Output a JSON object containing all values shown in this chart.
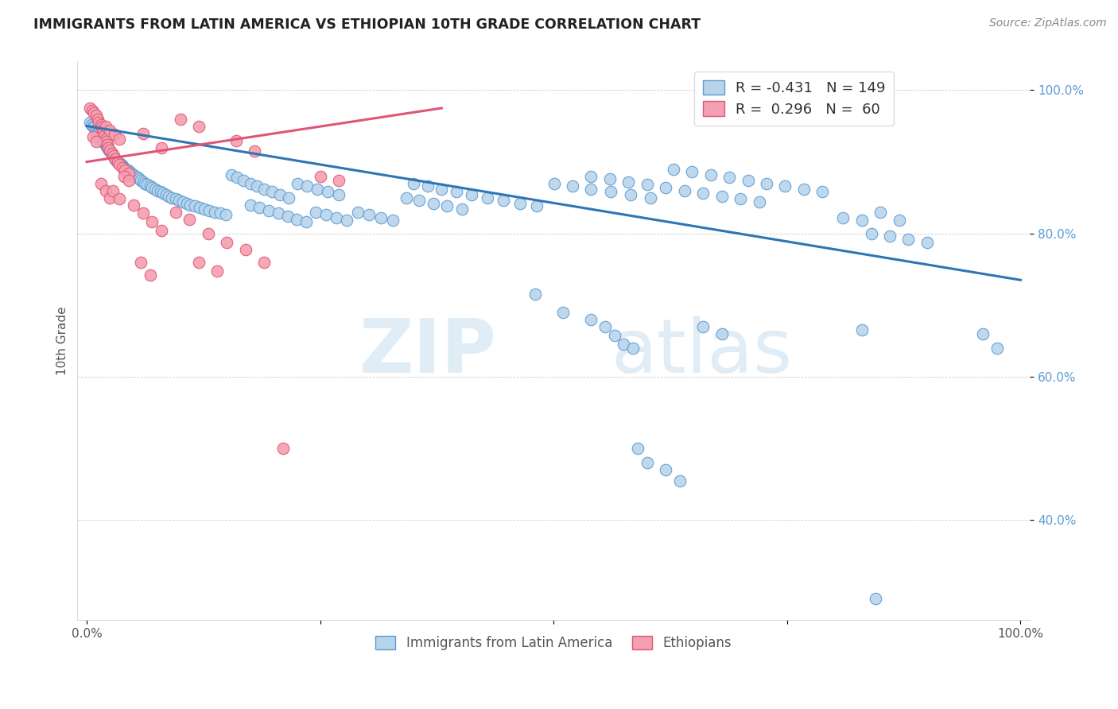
{
  "title": "IMMIGRANTS FROM LATIN AMERICA VS ETHIOPIAN 10TH GRADE CORRELATION CHART",
  "source": "Source: ZipAtlas.com",
  "ylabel": "10th Grade",
  "legend_blue_r": "R = -0.431",
  "legend_blue_n": "N = 149",
  "legend_pink_r": "R =  0.296",
  "legend_pink_n": "N =  60",
  "blue_color": "#b8d4ea",
  "blue_edge_color": "#5b9bd5",
  "pink_color": "#f4a0b0",
  "pink_edge_color": "#e05575",
  "pink_line_color": "#e05575",
  "blue_line_color": "#2e75b6",
  "watermark_zip": "ZIP",
  "watermark_atlas": "atlas",
  "blue_scatter": [
    [
      0.003,
      0.955
    ],
    [
      0.005,
      0.952
    ],
    [
      0.007,
      0.95
    ],
    [
      0.008,
      0.948
    ],
    [
      0.009,
      0.945
    ],
    [
      0.01,
      0.943
    ],
    [
      0.011,
      0.941
    ],
    [
      0.012,
      0.94
    ],
    [
      0.013,
      0.938
    ],
    [
      0.014,
      0.936
    ],
    [
      0.015,
      0.934
    ],
    [
      0.016,
      0.932
    ],
    [
      0.017,
      0.93
    ],
    [
      0.018,
      0.928
    ],
    [
      0.019,
      0.926
    ],
    [
      0.02,
      0.924
    ],
    [
      0.021,
      0.922
    ],
    [
      0.022,
      0.92
    ],
    [
      0.023,
      0.918
    ],
    [
      0.024,
      0.916
    ],
    [
      0.025,
      0.915
    ],
    [
      0.026,
      0.913
    ],
    [
      0.027,
      0.911
    ],
    [
      0.028,
      0.909
    ],
    [
      0.029,
      0.907
    ],
    [
      0.03,
      0.905
    ],
    [
      0.031,
      0.903
    ],
    [
      0.032,
      0.901
    ],
    [
      0.033,
      0.9
    ],
    [
      0.035,
      0.898
    ],
    [
      0.037,
      0.896
    ],
    [
      0.038,
      0.894
    ],
    [
      0.04,
      0.892
    ],
    [
      0.042,
      0.89
    ],
    [
      0.044,
      0.888
    ],
    [
      0.046,
      0.886
    ],
    [
      0.048,
      0.884
    ],
    [
      0.05,
      0.882
    ],
    [
      0.052,
      0.88
    ],
    [
      0.054,
      0.878
    ],
    [
      0.056,
      0.876
    ],
    [
      0.058,
      0.874
    ],
    [
      0.06,
      0.872
    ],
    [
      0.062,
      0.87
    ],
    [
      0.065,
      0.868
    ],
    [
      0.068,
      0.866
    ],
    [
      0.07,
      0.864
    ],
    [
      0.073,
      0.862
    ],
    [
      0.076,
      0.86
    ],
    [
      0.079,
      0.858
    ],
    [
      0.082,
      0.856
    ],
    [
      0.085,
      0.854
    ],
    [
      0.088,
      0.852
    ],
    [
      0.091,
      0.85
    ],
    [
      0.095,
      0.848
    ],
    [
      0.099,
      0.846
    ],
    [
      0.103,
      0.844
    ],
    [
      0.107,
      0.842
    ],
    [
      0.111,
      0.84
    ],
    [
      0.116,
      0.838
    ],
    [
      0.121,
      0.836
    ],
    [
      0.126,
      0.834
    ],
    [
      0.131,
      0.832
    ],
    [
      0.137,
      0.83
    ],
    [
      0.143,
      0.828
    ],
    [
      0.149,
      0.826
    ],
    [
      0.155,
      0.882
    ],
    [
      0.161,
      0.878
    ],
    [
      0.168,
      0.874
    ],
    [
      0.175,
      0.87
    ],
    [
      0.182,
      0.866
    ],
    [
      0.19,
      0.862
    ],
    [
      0.198,
      0.858
    ],
    [
      0.207,
      0.854
    ],
    [
      0.216,
      0.85
    ],
    [
      0.226,
      0.87
    ],
    [
      0.236,
      0.866
    ],
    [
      0.247,
      0.862
    ],
    [
      0.258,
      0.858
    ],
    [
      0.27,
      0.854
    ],
    [
      0.175,
      0.84
    ],
    [
      0.185,
      0.836
    ],
    [
      0.195,
      0.832
    ],
    [
      0.205,
      0.828
    ],
    [
      0.215,
      0.824
    ],
    [
      0.225,
      0.82
    ],
    [
      0.235,
      0.816
    ],
    [
      0.245,
      0.83
    ],
    [
      0.256,
      0.826
    ],
    [
      0.267,
      0.822
    ],
    [
      0.278,
      0.818
    ],
    [
      0.29,
      0.83
    ],
    [
      0.302,
      0.826
    ],
    [
      0.315,
      0.822
    ],
    [
      0.328,
      0.818
    ],
    [
      0.342,
      0.85
    ],
    [
      0.356,
      0.846
    ],
    [
      0.371,
      0.842
    ],
    [
      0.386,
      0.838
    ],
    [
      0.402,
      0.834
    ],
    [
      0.35,
      0.87
    ],
    [
      0.365,
      0.866
    ],
    [
      0.38,
      0.862
    ],
    [
      0.396,
      0.858
    ],
    [
      0.412,
      0.854
    ],
    [
      0.429,
      0.85
    ],
    [
      0.446,
      0.846
    ],
    [
      0.464,
      0.842
    ],
    [
      0.482,
      0.838
    ],
    [
      0.501,
      0.87
    ],
    [
      0.52,
      0.866
    ],
    [
      0.54,
      0.862
    ],
    [
      0.561,
      0.858
    ],
    [
      0.582,
      0.854
    ],
    [
      0.604,
      0.85
    ],
    [
      0.54,
      0.88
    ],
    [
      0.56,
      0.876
    ],
    [
      0.58,
      0.872
    ],
    [
      0.6,
      0.868
    ],
    [
      0.62,
      0.864
    ],
    [
      0.64,
      0.86
    ],
    [
      0.66,
      0.856
    ],
    [
      0.68,
      0.852
    ],
    [
      0.7,
      0.848
    ],
    [
      0.72,
      0.844
    ],
    [
      0.628,
      0.89
    ],
    [
      0.648,
      0.886
    ],
    [
      0.668,
      0.882
    ],
    [
      0.688,
      0.878
    ],
    [
      0.708,
      0.874
    ],
    [
      0.728,
      0.87
    ],
    [
      0.748,
      0.866
    ],
    [
      0.768,
      0.862
    ],
    [
      0.788,
      0.858
    ],
    [
      0.81,
      0.822
    ],
    [
      0.83,
      0.818
    ],
    [
      0.85,
      0.83
    ],
    [
      0.87,
      0.818
    ],
    [
      0.84,
      0.8
    ],
    [
      0.86,
      0.796
    ],
    [
      0.88,
      0.792
    ],
    [
      0.9,
      0.788
    ],
    [
      0.48,
      0.715
    ],
    [
      0.51,
      0.69
    ],
    [
      0.54,
      0.68
    ],
    [
      0.555,
      0.67
    ],
    [
      0.565,
      0.658
    ],
    [
      0.575,
      0.645
    ],
    [
      0.585,
      0.64
    ],
    [
      0.59,
      0.5
    ],
    [
      0.6,
      0.48
    ],
    [
      0.62,
      0.47
    ],
    [
      0.635,
      0.455
    ],
    [
      0.66,
      0.67
    ],
    [
      0.68,
      0.66
    ],
    [
      0.83,
      0.665
    ],
    [
      0.96,
      0.66
    ],
    [
      0.975,
      0.64
    ],
    [
      0.845,
      0.29
    ]
  ],
  "pink_scatter": [
    [
      0.003,
      0.975
    ],
    [
      0.006,
      0.972
    ],
    [
      0.008,
      0.968
    ],
    [
      0.01,
      0.965
    ],
    [
      0.012,
      0.96
    ],
    [
      0.013,
      0.955
    ],
    [
      0.015,
      0.952
    ],
    [
      0.016,
      0.948
    ],
    [
      0.017,
      0.944
    ],
    [
      0.018,
      0.94
    ],
    [
      0.019,
      0.936
    ],
    [
      0.02,
      0.932
    ],
    [
      0.021,
      0.928
    ],
    [
      0.022,
      0.924
    ],
    [
      0.023,
      0.92
    ],
    [
      0.025,
      0.916
    ],
    [
      0.027,
      0.912
    ],
    [
      0.029,
      0.908
    ],
    [
      0.031,
      0.904
    ],
    [
      0.033,
      0.9
    ],
    [
      0.035,
      0.896
    ],
    [
      0.038,
      0.892
    ],
    [
      0.041,
      0.888
    ],
    [
      0.045,
      0.884
    ],
    [
      0.02,
      0.95
    ],
    [
      0.025,
      0.944
    ],
    [
      0.03,
      0.938
    ],
    [
      0.035,
      0.932
    ],
    [
      0.04,
      0.88
    ],
    [
      0.045,
      0.874
    ],
    [
      0.015,
      0.87
    ],
    [
      0.02,
      0.86
    ],
    [
      0.025,
      0.85
    ],
    [
      0.007,
      0.935
    ],
    [
      0.01,
      0.928
    ],
    [
      0.05,
      0.84
    ],
    [
      0.06,
      0.828
    ],
    [
      0.07,
      0.816
    ],
    [
      0.08,
      0.804
    ],
    [
      0.028,
      0.86
    ],
    [
      0.035,
      0.848
    ],
    [
      0.095,
      0.83
    ],
    [
      0.11,
      0.82
    ],
    [
      0.13,
      0.8
    ],
    [
      0.15,
      0.788
    ],
    [
      0.12,
      0.76
    ],
    [
      0.14,
      0.748
    ],
    [
      0.17,
      0.778
    ],
    [
      0.19,
      0.76
    ],
    [
      0.058,
      0.76
    ],
    [
      0.068,
      0.742
    ],
    [
      0.25,
      0.88
    ],
    [
      0.27,
      0.874
    ],
    [
      0.06,
      0.94
    ],
    [
      0.08,
      0.92
    ],
    [
      0.1,
      0.96
    ],
    [
      0.12,
      0.95
    ],
    [
      0.16,
      0.93
    ],
    [
      0.18,
      0.915
    ],
    [
      0.21,
      0.5
    ]
  ],
  "blue_trend_x": [
    0.0,
    1.0
  ],
  "blue_trend_y": [
    0.95,
    0.735
  ],
  "pink_trend_x": [
    0.0,
    0.38
  ],
  "pink_trend_y": [
    0.9,
    0.975
  ],
  "xlim": [
    -0.01,
    1.01
  ],
  "ylim": [
    0.26,
    1.04
  ],
  "xticks": [
    0.0,
    0.25,
    0.5,
    0.75,
    1.0
  ],
  "xticklabels": [
    "0.0%",
    "",
    "",
    "",
    "100.0%"
  ],
  "ytick_vals": [
    0.4,
    0.6,
    0.8,
    1.0
  ],
  "ytick_labels": [
    "40.0%",
    "60.0%",
    "80.0%",
    "100.0%"
  ],
  "background_color": "#ffffff",
  "grid_color": "#cccccc",
  "title_fontsize": 12.5,
  "source_fontsize": 10,
  "scatter_size": 110
}
